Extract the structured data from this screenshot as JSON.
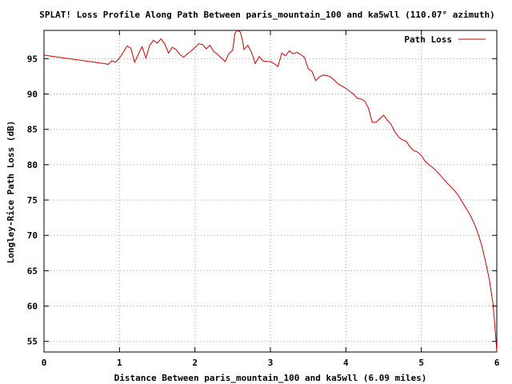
{
  "chart_data": {
    "type": "line",
    "title": "SPLAT! Loss Profile Along Path Between paris_mountain_100 and ka5wll (110.07° azimuth)",
    "xlabel": "Distance Between paris_mountain_100 and ka5wll (6.09 miles)",
    "ylabel": "Longley-Rice Path Loss (dB)",
    "xlim": [
      0,
      6
    ],
    "ylim": [
      53.5,
      99
    ],
    "xticks": [
      "0",
      "1",
      "2",
      "3",
      "4",
      "5",
      "6"
    ],
    "yticks": [
      "55",
      "60",
      "65",
      "70",
      "75",
      "80",
      "85",
      "90",
      "95"
    ],
    "grid": true,
    "legend_position": "top-right",
    "series": [
      {
        "name": "Path Loss",
        "color": "#cc0000",
        "x": [
          0.0,
          0.2,
          0.4,
          0.6,
          0.8,
          0.85,
          0.9,
          0.95,
          1.0,
          1.05,
          1.1,
          1.15,
          1.2,
          1.25,
          1.3,
          1.35,
          1.4,
          1.45,
          1.5,
          1.55,
          1.6,
          1.65,
          1.7,
          1.75,
          1.8,
          1.85,
          1.9,
          1.95,
          2.0,
          2.05,
          2.1,
          2.15,
          2.2,
          2.25,
          2.3,
          2.35,
          2.4,
          2.45,
          2.5,
          2.53,
          2.56,
          2.6,
          2.63,
          2.65,
          2.7,
          2.75,
          2.8,
          2.85,
          2.9,
          2.95,
          3.0,
          3.05,
          3.1,
          3.15,
          3.2,
          3.25,
          3.3,
          3.35,
          3.4,
          3.45,
          3.5,
          3.55,
          3.6,
          3.65,
          3.7,
          3.75,
          3.8,
          3.85,
          3.9,
          3.95,
          4.0,
          4.05,
          4.1,
          4.15,
          4.2,
          4.25,
          4.3,
          4.35,
          4.4,
          4.45,
          4.5,
          4.55,
          4.6,
          4.65,
          4.7,
          4.75,
          4.8,
          4.85,
          4.9,
          4.95,
          5.0,
          5.05,
          5.1,
          5.15,
          5.2,
          5.25,
          5.3,
          5.35,
          5.4,
          5.45,
          5.5,
          5.55,
          5.6,
          5.65,
          5.7,
          5.75,
          5.8,
          5.85,
          5.9,
          5.95,
          5.98,
          6.0
        ],
        "values": [
          95.5,
          95.2,
          94.9,
          94.6,
          94.3,
          94.2,
          94.7,
          94.5,
          95.1,
          95.9,
          96.8,
          96.5,
          94.5,
          95.6,
          96.7,
          95.1,
          96.9,
          97.6,
          97.2,
          97.8,
          97.1,
          95.8,
          96.6,
          96.3,
          95.6,
          95.2,
          95.7,
          96.1,
          96.6,
          97.1,
          97.0,
          96.4,
          96.9,
          96.0,
          95.6,
          95.1,
          94.6,
          95.7,
          96.2,
          98.6,
          99.0,
          98.8,
          97.6,
          96.3,
          96.9,
          95.9,
          94.3,
          95.3,
          94.7,
          94.6,
          94.6,
          94.3,
          93.9,
          95.8,
          95.4,
          96.1,
          95.7,
          95.9,
          95.6,
          95.2,
          93.6,
          93.2,
          91.9,
          92.4,
          92.7,
          92.6,
          92.4,
          91.9,
          91.4,
          91.1,
          90.8,
          90.4,
          90.0,
          89.4,
          89.3,
          89.0,
          88.0,
          86.0,
          86.0,
          86.5,
          87.0,
          86.3,
          85.7,
          84.6,
          83.9,
          83.5,
          83.3,
          82.5,
          82.0,
          81.8,
          81.3,
          80.5,
          80.0,
          79.6,
          79.1,
          78.5,
          77.9,
          77.3,
          76.8,
          76.2,
          75.5,
          74.6,
          73.7,
          72.8,
          71.7,
          70.3,
          68.6,
          66.3,
          63.8,
          60.3,
          56.5,
          53.6
        ]
      }
    ]
  }
}
